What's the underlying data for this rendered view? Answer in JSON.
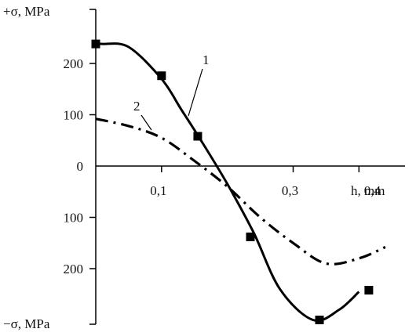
{
  "chart_data": {
    "type": "line",
    "y_axis_top_label": "+σ, MPa",
    "y_axis_bottom_label": "−σ, MPa",
    "x_axis_unit_label": "h, mm",
    "xlim": [
      0,
      0.47
    ],
    "ylim": [
      -300,
      260
    ],
    "x_ticks": [
      {
        "value": 0.1,
        "label": "0,1"
      },
      {
        "value": 0.3,
        "label": "0,3"
      },
      {
        "value": 0.4,
        "label": "0,4"
      }
    ],
    "y_ticks": [
      {
        "value": 200,
        "label": "200"
      },
      {
        "value": 100,
        "label": "100"
      },
      {
        "value": 0,
        "label": "0"
      },
      {
        "value": -100,
        "label": "100"
      },
      {
        "value": -200,
        "label": "200"
      }
    ],
    "grid": false,
    "series": [
      {
        "id": "curve-1",
        "curve_label": "1",
        "style": "solid",
        "marker": "square",
        "color": "#000000",
        "x": [
          0.0,
          0.01,
          0.05,
          0.1,
          0.13,
          0.16,
          0.2,
          0.24,
          0.28,
          0.33,
          0.37,
          0.4
        ],
        "y": [
          238,
          238,
          232,
          170,
          110,
          50,
          -35,
          -130,
          -240,
          -300,
          -280,
          -245
        ],
        "marker_points": [
          {
            "x": 0.0,
            "y": 238
          },
          {
            "x": 0.1,
            "y": 176
          },
          {
            "x": 0.155,
            "y": 58
          },
          {
            "x": 0.235,
            "y": -138
          },
          {
            "x": 0.34,
            "y": -300
          },
          {
            "x": 0.415,
            "y": -242
          }
        ]
      },
      {
        "id": "curve-2",
        "curve_label": "2",
        "style": "dash-dot",
        "marker": "none",
        "color": "#000000",
        "x": [
          0.0,
          0.05,
          0.1,
          0.15,
          0.2,
          0.25,
          0.3,
          0.35,
          0.4,
          0.44
        ],
        "y": [
          92,
          78,
          55,
          10,
          -40,
          -100,
          -150,
          -190,
          -180,
          -158
        ]
      }
    ]
  }
}
